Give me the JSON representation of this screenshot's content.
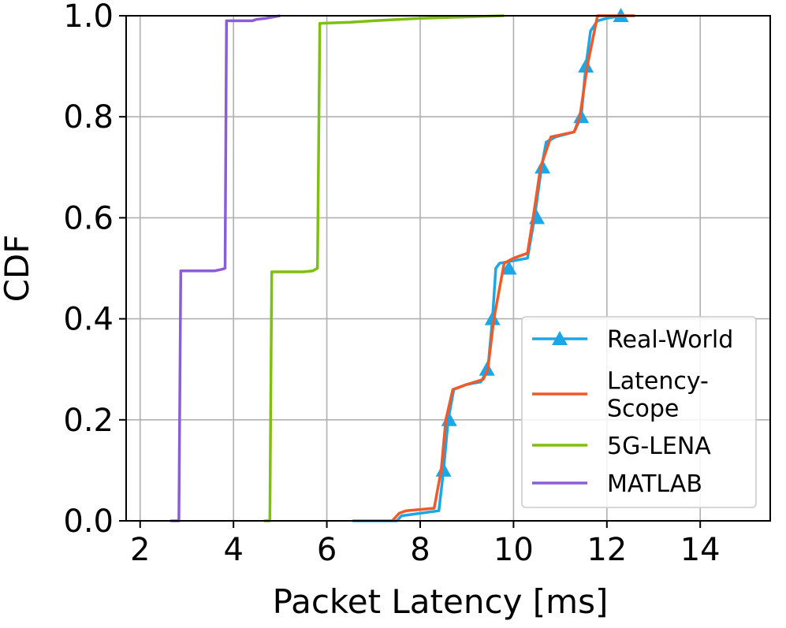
{
  "chart_data": {
    "type": "line",
    "xlabel": "Packet Latency [ms]",
    "ylabel": "CDF",
    "xlim": [
      1.7,
      15.5
    ],
    "ylim": [
      0,
      1
    ],
    "x_ticks": [
      2,
      4,
      6,
      8,
      10,
      12,
      14
    ],
    "x_tick_labels": [
      "2",
      "4",
      "6",
      "8",
      "10",
      "12",
      "14"
    ],
    "y_ticks": [
      0.0,
      0.2,
      0.4,
      0.6,
      0.8,
      1.0
    ],
    "y_tick_labels": [
      "0.0",
      "0.2",
      "0.4",
      "0.6",
      "0.8",
      "1.0"
    ],
    "grid": true,
    "legend_position": "lower-right",
    "series": [
      {
        "name": "Real-World",
        "color": "#1ba6e8",
        "marker": "triangle",
        "x": [
          6.55,
          7.5,
          7.6,
          8.0,
          8.4,
          8.5,
          8.6,
          8.72,
          9.0,
          9.3,
          9.45,
          9.55,
          9.62,
          9.7,
          10.0,
          10.3,
          10.45,
          10.6,
          10.7,
          10.9,
          11.3,
          11.45,
          11.55,
          11.65,
          11.8,
          12.0,
          12.3,
          12.6
        ],
        "y": [
          0.0,
          0.0,
          0.01,
          0.015,
          0.02,
          0.1,
          0.2,
          0.26,
          0.27,
          0.275,
          0.3,
          0.4,
          0.5,
          0.51,
          0.515,
          0.52,
          0.6,
          0.7,
          0.75,
          0.76,
          0.77,
          0.8,
          0.9,
          0.97,
          0.99,
          0.995,
          1.0,
          1.0
        ],
        "marker_points": [
          {
            "x": 8.5,
            "y": 0.1
          },
          {
            "x": 8.62,
            "y": 0.2
          },
          {
            "x": 9.43,
            "y": 0.3
          },
          {
            "x": 9.55,
            "y": 0.4
          },
          {
            "x": 9.9,
            "y": 0.5
          },
          {
            "x": 10.5,
            "y": 0.6
          },
          {
            "x": 10.62,
            "y": 0.7
          },
          {
            "x": 11.45,
            "y": 0.8
          },
          {
            "x": 11.55,
            "y": 0.9
          },
          {
            "x": 12.3,
            "y": 1.0
          }
        ]
      },
      {
        "name": "Latency-\nScope",
        "color": "#f05a2a",
        "x": [
          7.4,
          7.55,
          7.7,
          8.3,
          8.45,
          8.55,
          8.7,
          9.0,
          9.35,
          9.45,
          9.58,
          9.8,
          10.0,
          10.3,
          10.42,
          10.58,
          10.8,
          11.3,
          11.42,
          11.58,
          11.8,
          12.6
        ],
        "y": [
          0.0,
          0.015,
          0.02,
          0.025,
          0.1,
          0.2,
          0.26,
          0.27,
          0.28,
          0.3,
          0.4,
          0.51,
          0.52,
          0.53,
          0.6,
          0.7,
          0.76,
          0.77,
          0.8,
          0.9,
          1.0,
          1.0
        ]
      },
      {
        "name": "5G-LENA",
        "color": "#7fbf0f",
        "x": [
          4.65,
          4.78,
          4.8,
          4.82,
          5.5,
          5.7,
          5.8,
          5.85,
          6.5,
          7.0,
          8.0,
          9.8
        ],
        "y": [
          0.0,
          0.0,
          0.25,
          0.493,
          0.493,
          0.495,
          0.5,
          0.985,
          0.987,
          0.99,
          0.995,
          1.0
        ]
      },
      {
        "name": "MATLAB",
        "color": "#8a5ed6",
        "x": [
          2.65,
          2.83,
          2.85,
          2.87,
          3.6,
          3.75,
          3.82,
          3.85,
          4.4,
          4.5,
          4.7,
          5.0
        ],
        "y": [
          0.0,
          0.0,
          0.25,
          0.495,
          0.495,
          0.498,
          0.5,
          0.99,
          0.99,
          0.993,
          0.995,
          1.0
        ]
      }
    ]
  }
}
